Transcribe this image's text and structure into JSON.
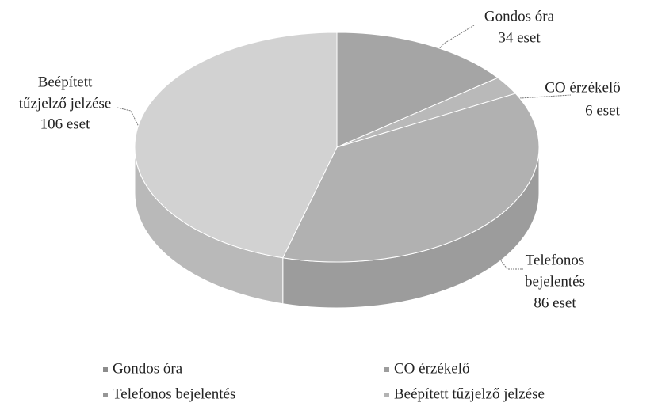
{
  "chart_data": {
    "type": "pie",
    "categories": [
      "Gondos óra",
      "CO érzékelő",
      "Telefonos bejelentés",
      "Beépített tűzjelző jelzése"
    ],
    "values": [
      34,
      6,
      86,
      106
    ],
    "value_labels": [
      "34 eset",
      "6 eset",
      "86 eset",
      "106 eset"
    ],
    "label_lines": [
      [
        "Gondos óra"
      ],
      [
        "CO érzékelő"
      ],
      [
        "Telefonos",
        "bejelentés"
      ],
      [
        "Beépített",
        "tűzjelző jelzése"
      ]
    ],
    "colors": [
      "#a5a5a5",
      "#b9b9b9",
      "#b1b1b1",
      "#d2d2d2"
    ],
    "annotation": "0",
    "legend": "bottom"
  }
}
